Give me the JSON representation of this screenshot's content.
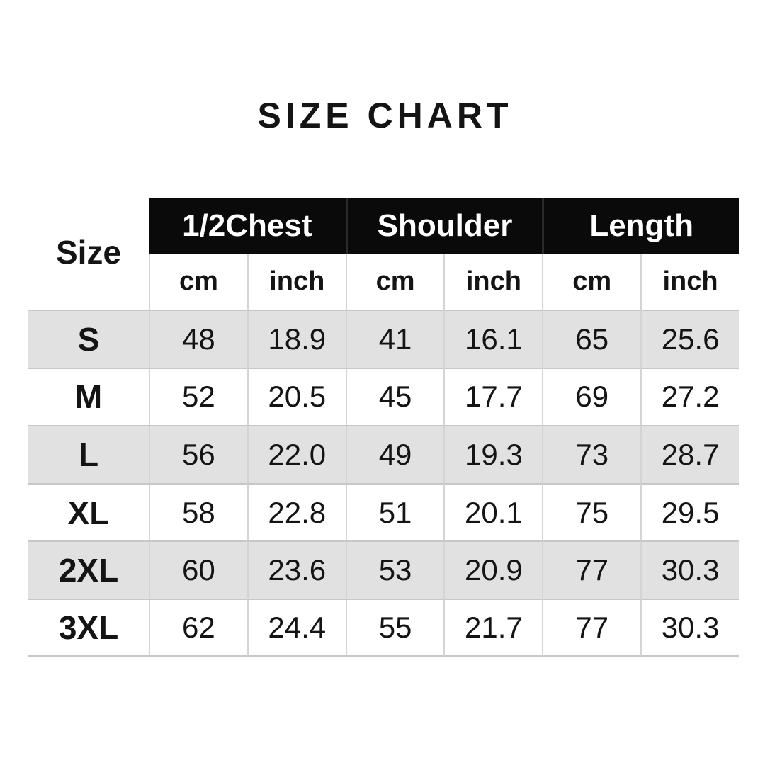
{
  "title": "SIZE CHART",
  "table": {
    "size_header": "Size",
    "groups": [
      {
        "label": "1/2Chest"
      },
      {
        "label": "Shoulder"
      },
      {
        "label": "Length"
      }
    ],
    "unit_headers": [
      "cm",
      "inch",
      "cm",
      "inch",
      "cm",
      "inch"
    ],
    "rows": [
      {
        "size": "S",
        "values": [
          "48",
          "18.9",
          "41",
          "16.1",
          "65",
          "25.6"
        ]
      },
      {
        "size": "M",
        "values": [
          "52",
          "20.5",
          "45",
          "17.7",
          "69",
          "27.2"
        ]
      },
      {
        "size": "L",
        "values": [
          "56",
          "22.0",
          "49",
          "19.3",
          "73",
          "28.7"
        ]
      },
      {
        "size": "XL",
        "values": [
          "58",
          "22.8",
          "51",
          "20.1",
          "75",
          "29.5"
        ]
      },
      {
        "size": "2XL",
        "values": [
          "60",
          "23.6",
          "53",
          "20.9",
          "77",
          "30.3"
        ]
      },
      {
        "size": "3XL",
        "values": [
          "62",
          "24.4",
          "55",
          "21.7",
          "77",
          "30.3"
        ]
      }
    ]
  },
  "colors": {
    "background": "#ffffff",
    "header_bg": "#0a0a0a",
    "header_text": "#ffffff",
    "text": "#141414",
    "row_band": "#e1e1e1",
    "line_vertical": "#d4d4d4",
    "line_horizontal": "#c7c7c7"
  },
  "chart_data": {
    "type": "table",
    "title": "SIZE CHART",
    "columns": [
      "Size",
      "1/2Chest cm",
      "1/2Chest inch",
      "Shoulder cm",
      "Shoulder inch",
      "Length cm",
      "Length inch"
    ],
    "rows": [
      [
        "S",
        48,
        18.9,
        41,
        16.1,
        65,
        25.6
      ],
      [
        "M",
        52,
        20.5,
        45,
        17.7,
        69,
        27.2
      ],
      [
        "L",
        56,
        22.0,
        49,
        19.3,
        73,
        28.7
      ],
      [
        "XL",
        58,
        22.8,
        51,
        20.1,
        75,
        29.5
      ],
      [
        "2XL",
        60,
        23.6,
        53,
        20.9,
        77,
        30.3
      ],
      [
        "3XL",
        62,
        24.4,
        55,
        21.7,
        77,
        30.3
      ]
    ],
    "layout": "alternating gray row bands starting at first data row; black group header band with white text; unit sub-header row"
  }
}
